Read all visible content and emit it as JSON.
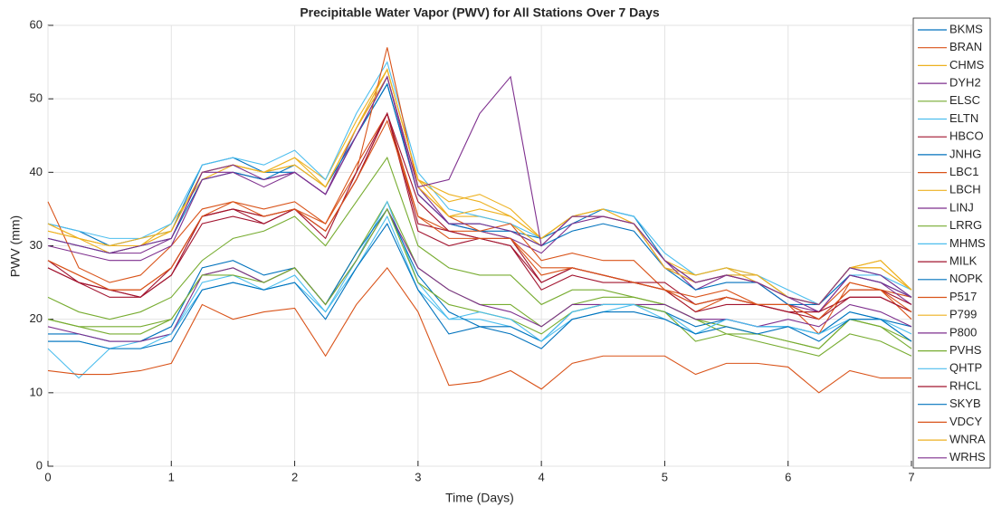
{
  "chart_data": {
    "type": "line",
    "title": "Precipitable Water Vapor (PWV) for All Stations Over 7 Days",
    "x_label": "Time (Days)",
    "y_label": "PWV (mm)",
    "x": [
      0,
      0.25,
      0.5,
      0.75,
      1,
      1.25,
      1.5,
      1.75,
      2,
      2.25,
      2.5,
      2.75,
      3,
      3.25,
      3.5,
      3.75,
      4,
      4.25,
      4.5,
      4.75,
      5,
      5.25,
      5.5,
      5.75,
      6,
      6.25,
      6.5,
      6.75,
      7
    ],
    "xlim": [
      0,
      7
    ],
    "xticks": [
      0,
      1,
      2,
      3,
      4,
      5,
      6,
      7
    ],
    "ylim": [
      0,
      60
    ],
    "yticks": [
      0,
      10,
      20,
      30,
      40,
      50,
      60
    ],
    "grid": true,
    "legend": "outside-right",
    "series": [
      {
        "name": "BKMS",
        "color": "#0072BD",
        "values": [
          33,
          32,
          30,
          31,
          32,
          41,
          42,
          40,
          40,
          37,
          45,
          52,
          37,
          33,
          33,
          32,
          31,
          33,
          35,
          34,
          28,
          25,
          26,
          26,
          23,
          22,
          27,
          26,
          23
        ]
      },
      {
        "name": "BRAN",
        "color": "#D95319",
        "values": [
          28,
          26,
          24,
          24,
          27,
          34,
          35,
          34,
          35,
          33,
          41,
          48,
          34,
          32,
          32,
          31,
          27,
          27,
          26,
          25,
          24,
          21,
          23,
          22,
          21,
          21,
          25,
          24,
          23
        ]
      },
      {
        "name": "CHMS",
        "color": "#EDB120",
        "values": [
          33,
          31,
          29,
          30,
          33,
          39,
          41,
          40,
          42,
          39,
          47,
          54,
          39,
          34,
          34,
          33,
          30,
          34,
          34,
          33,
          27,
          26,
          27,
          25,
          23,
          22,
          27,
          27,
          24
        ]
      },
      {
        "name": "DYH2",
        "color": "#7E2F8E",
        "values": [
          31,
          30,
          29,
          29,
          31,
          40,
          40,
          39,
          40,
          37,
          46,
          53,
          38,
          33,
          32,
          31,
          29,
          33,
          34,
          33,
          28,
          24,
          26,
          25,
          22,
          21,
          26,
          25,
          22
        ]
      },
      {
        "name": "ELSC",
        "color": "#77AC30",
        "values": [
          23,
          21,
          20,
          21,
          23,
          28,
          31,
          32,
          34,
          30,
          36,
          42,
          30,
          27,
          26,
          26,
          22,
          24,
          24,
          23,
          22,
          20,
          18,
          18,
          17,
          16,
          20,
          19,
          17
        ]
      },
      {
        "name": "ELTN",
        "color": "#4DBEEE",
        "values": [
          33,
          32,
          31,
          31,
          33,
          41,
          42,
          41,
          43,
          39,
          48,
          55,
          40,
          35,
          34,
          33,
          31,
          34,
          35,
          34,
          29,
          26,
          27,
          26,
          24,
          22,
          26,
          26,
          24
        ]
      },
      {
        "name": "HBCO",
        "color": "#A2142F",
        "values": [
          28,
          25,
          24,
          23,
          27,
          34,
          35,
          34,
          35,
          32,
          39,
          48,
          36,
          32,
          31,
          31,
          25,
          27,
          26,
          25,
          24,
          22,
          23,
          22,
          22,
          20,
          24,
          24,
          22
        ]
      },
      {
        "name": "JNHG",
        "color": "#0072BD",
        "values": [
          31,
          30,
          29,
          30,
          31,
          39,
          40,
          39,
          41,
          38,
          45,
          52,
          37,
          33,
          32,
          32,
          30,
          32,
          33,
          32,
          27,
          24,
          25,
          25,
          22,
          22,
          26,
          25,
          23
        ]
      },
      {
        "name": "LBC1",
        "color": "#D95319",
        "values": [
          36,
          27,
          25,
          26,
          30,
          35,
          36,
          35,
          36,
          33,
          40,
          57,
          38,
          34,
          32,
          33,
          28,
          29,
          28,
          28,
          24,
          23,
          24,
          22,
          22,
          18,
          25,
          24,
          20
        ]
      },
      {
        "name": "LBCH",
        "color": "#EDB120",
        "values": [
          32,
          31,
          30,
          31,
          32,
          40,
          41,
          40,
          41,
          38,
          46,
          54,
          39,
          36,
          37,
          35,
          31,
          34,
          35,
          33,
          27,
          25,
          26,
          26,
          23,
          22,
          27,
          28,
          24
        ]
      },
      {
        "name": "LINJ",
        "color": "#7E2F8E",
        "values": [
          30,
          29,
          28,
          28,
          30,
          39,
          40,
          38,
          40,
          37,
          45,
          53,
          37,
          33,
          33,
          32,
          30,
          34,
          34,
          33,
          27,
          25,
          26,
          25,
          23,
          21,
          26,
          25,
          23
        ]
      },
      {
        "name": "LRRG",
        "color": "#77AC30",
        "values": [
          20,
          19,
          18,
          18,
          20,
          26,
          27,
          25,
          27,
          22,
          29,
          36,
          27,
          24,
          22,
          22,
          19,
          22,
          23,
          23,
          22,
          20,
          19,
          18,
          17,
          16,
          20,
          19,
          16
        ]
      },
      {
        "name": "MHMS",
        "color": "#4DBEEE",
        "values": [
          16,
          12,
          16,
          17,
          18,
          25,
          26,
          24,
          26,
          21,
          28,
          36,
          25,
          20,
          20,
          19,
          17,
          20,
          21,
          22,
          21,
          18,
          20,
          19,
          19,
          18,
          21,
          20,
          17
        ]
      },
      {
        "name": "MILK",
        "color": "#A2142F",
        "values": [
          27,
          25,
          24,
          23,
          26,
          33,
          34,
          33,
          35,
          32,
          39,
          48,
          32,
          30,
          31,
          30,
          24,
          26,
          25,
          25,
          25,
          22,
          23,
          22,
          21,
          21,
          23,
          23,
          21
        ]
      },
      {
        "name": "NOPK",
        "color": "#0072BD",
        "values": [
          18,
          18,
          17,
          17,
          19,
          27,
          28,
          26,
          27,
          22,
          29,
          35,
          26,
          21,
          19,
          19,
          17,
          21,
          22,
          22,
          21,
          19,
          20,
          19,
          19,
          18,
          21,
          20,
          19
        ]
      },
      {
        "name": "P517",
        "color": "#D95319",
        "values": [
          13,
          12.5,
          12.5,
          13,
          14,
          22,
          20,
          21,
          21.5,
          15,
          22,
          27,
          21,
          11,
          11.5,
          13,
          10.5,
          14,
          15,
          15,
          15,
          12.5,
          14,
          14,
          13.5,
          10,
          13,
          12,
          12
        ]
      },
      {
        "name": "P799",
        "color": "#EDB120",
        "values": [
          33,
          31,
          30,
          30,
          32,
          40,
          41,
          40,
          41,
          38,
          46,
          53,
          38,
          34,
          35,
          34,
          31,
          34,
          34,
          33,
          27,
          25,
          26,
          25,
          23,
          22,
          27,
          27,
          24
        ]
      },
      {
        "name": "P800",
        "color": "#7E2F8E",
        "values": [
          19,
          18,
          17,
          17,
          18,
          26,
          27,
          25,
          27,
          22,
          28,
          35,
          27,
          24,
          22,
          21,
          19,
          22,
          22,
          22,
          22,
          20,
          20,
          19,
          20,
          19,
          22,
          21,
          19
        ]
      },
      {
        "name": "PVHS",
        "color": "#77AC30",
        "values": [
          20,
          19,
          19,
          19,
          20,
          26,
          26,
          25,
          27,
          22,
          28,
          35,
          25,
          22,
          21,
          20,
          18,
          21,
          22,
          22,
          21,
          17,
          18,
          17,
          16,
          15,
          18,
          17,
          15
        ]
      },
      {
        "name": "QHTP",
        "color": "#4DBEEE",
        "values": [
          17,
          17,
          16,
          16,
          18,
          24,
          25,
          24,
          25,
          21,
          27,
          34,
          24,
          20,
          21,
          20,
          17,
          21,
          22,
          22,
          20,
          18,
          20,
          19,
          19,
          18,
          20,
          20,
          18
        ]
      },
      {
        "name": "RHCL",
        "color": "#A2142F",
        "values": [
          27,
          25,
          23,
          23,
          26,
          34,
          35,
          33,
          35,
          31,
          40,
          48,
          33,
          32,
          31,
          30,
          25,
          27,
          26,
          25,
          24,
          21,
          22,
          22,
          21,
          20,
          23,
          23,
          21
        ]
      },
      {
        "name": "SKYB",
        "color": "#0072BD",
        "values": [
          17,
          17,
          16,
          16,
          17,
          24,
          25,
          24,
          25,
          20,
          27,
          33,
          24,
          18,
          19,
          18,
          16,
          20,
          21,
          21,
          20,
          18,
          19,
          18,
          19,
          17,
          20,
          20,
          17
        ]
      },
      {
        "name": "VDCY",
        "color": "#D95319",
        "values": [
          28,
          26,
          24,
          24,
          27,
          34,
          36,
          34,
          35,
          32,
          39,
          47,
          34,
          31,
          31,
          31,
          26,
          27,
          26,
          25,
          24,
          22,
          23,
          22,
          22,
          20,
          24,
          24,
          21
        ]
      },
      {
        "name": "WNRA",
        "color": "#EDB120",
        "values": [
          32,
          31,
          30,
          30,
          32,
          40,
          41,
          40,
          42,
          38,
          46,
          54,
          39,
          37,
          36,
          34,
          31,
          34,
          35,
          33,
          28,
          26,
          27,
          26,
          23,
          22,
          27,
          28,
          24
        ]
      },
      {
        "name": "WRHS",
        "color": "#7E2F8E",
        "values": [
          31,
          30,
          29,
          30,
          31,
          40,
          41,
          39,
          40,
          37,
          45,
          53,
          38,
          39,
          48,
          53,
          30,
          34,
          34,
          33,
          28,
          25,
          26,
          25,
          23,
          22,
          27,
          26,
          23
        ]
      }
    ]
  }
}
